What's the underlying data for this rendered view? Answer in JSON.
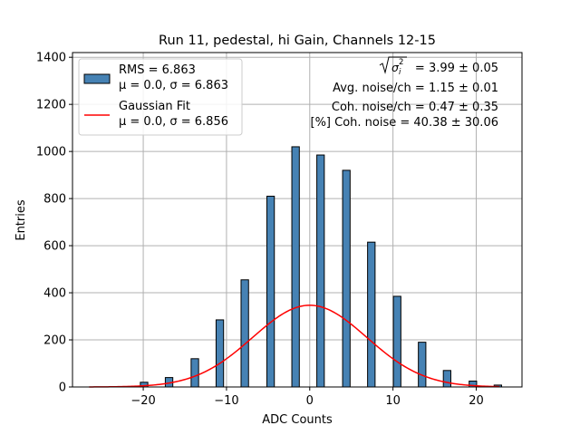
{
  "chart_data": {
    "type": "bar",
    "title": "Run 11, pedestal, hi Gain, Channels 12-15",
    "xlabel": "ADC Counts",
    "ylabel": "Entries",
    "xlim": [
      -28.5,
      25.5
    ],
    "ylim": [
      0,
      1420
    ],
    "bin_width": 0.9,
    "bins": [
      {
        "x": -19.9,
        "count": 20
      },
      {
        "x": -16.9,
        "count": 40
      },
      {
        "x": -13.8,
        "count": 120
      },
      {
        "x": -10.8,
        "count": 285
      },
      {
        "x": -7.8,
        "count": 455
      },
      {
        "x": -4.7,
        "count": 810
      },
      {
        "x": -1.7,
        "count": 1020
      },
      {
        "x": 1.3,
        "count": 985
      },
      {
        "x": 4.4,
        "count": 920
      },
      {
        "x": 7.4,
        "count": 615
      },
      {
        "x": 10.5,
        "count": 385
      },
      {
        "x": 13.5,
        "count": 190
      },
      {
        "x": 16.5,
        "count": 70
      },
      {
        "x": 19.6,
        "count": 25
      },
      {
        "x": 22.6,
        "count": 8
      }
    ],
    "gaussian_fit": {
      "mu": 0.0,
      "sigma": 6.856,
      "amplitude": 347,
      "x_range": [
        -26.5,
        22.8
      ]
    },
    "xticks": [
      -20,
      -10,
      0,
      10,
      20
    ],
    "yticks": [
      0,
      200,
      400,
      600,
      800,
      1000,
      1200,
      1400
    ],
    "grid": true,
    "legend_position": "top-left",
    "legend": [
      {
        "label_line1": "RMS = 6.863",
        "label_line2": "μ = 0.0, σ = 6.863",
        "type": "patch",
        "color": "#4682b4"
      },
      {
        "label_line1": "Gaussian Fit",
        "label_line2": "μ = 0.0, σ = 6.856",
        "type": "line",
        "color": "#ff0000"
      }
    ],
    "annotations": {
      "line1_value": " = 3.99 ± 0.05",
      "line2": "Avg. noise/ch = 1.15 ± 0.01",
      "line3": "Coh. noise/ch = 0.47 ± 0.35",
      "line4": "[%] Coh. noise = 40.38 ± 30.06"
    },
    "colors": {
      "bar": "#4682b4",
      "bar_edge": "#000000",
      "fit": "#ff0000",
      "grid": "#b0b0b0"
    }
  }
}
